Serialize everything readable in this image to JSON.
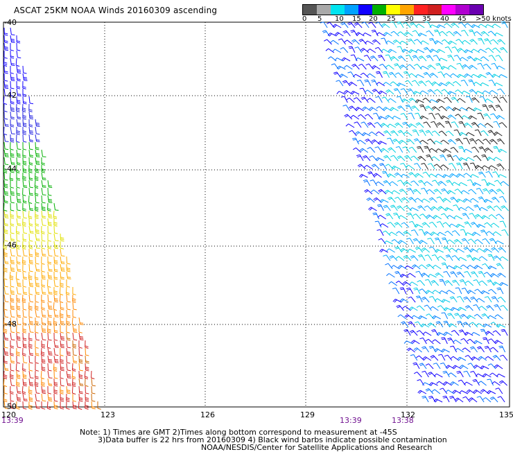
{
  "title": "ASCAT 25KM NOAA Winds 20160309 ascending",
  "legend": {
    "colors": [
      "#555555",
      "#a9a9a9",
      "#00e4f0",
      "#00a2ff",
      "#1000ff",
      "#00b000",
      "#ffff00",
      "#ffa500",
      "#ff2222",
      "#d02020",
      "#ff00ff",
      "#b000d0",
      "#6a00b0"
    ],
    "labels": [
      "0",
      "5",
      "10",
      "15",
      "20",
      "25",
      "30",
      "35",
      "40",
      "45",
      ">50 knots"
    ]
  },
  "axes": {
    "lat_labels": [
      "-40",
      "-42",
      "-44",
      "-46",
      "-48",
      "-50"
    ],
    "lon_labels": [
      "120",
      "123",
      "126",
      "129",
      "132",
      "135"
    ]
  },
  "times": {
    "left": "13:39",
    "mid": "13:39",
    "right": "13:38"
  },
  "notes": {
    "line1": "Note: 1) Times are GMT 2)Times along bottom correspond to measurement at -45S",
    "line2": "3)Data buffer is 22 hrs from 20160309 4) Black wind barbs indicate possible contamination",
    "line3": "NOAA/NESDIS/Center for Satellite Applications and Research"
  }
}
